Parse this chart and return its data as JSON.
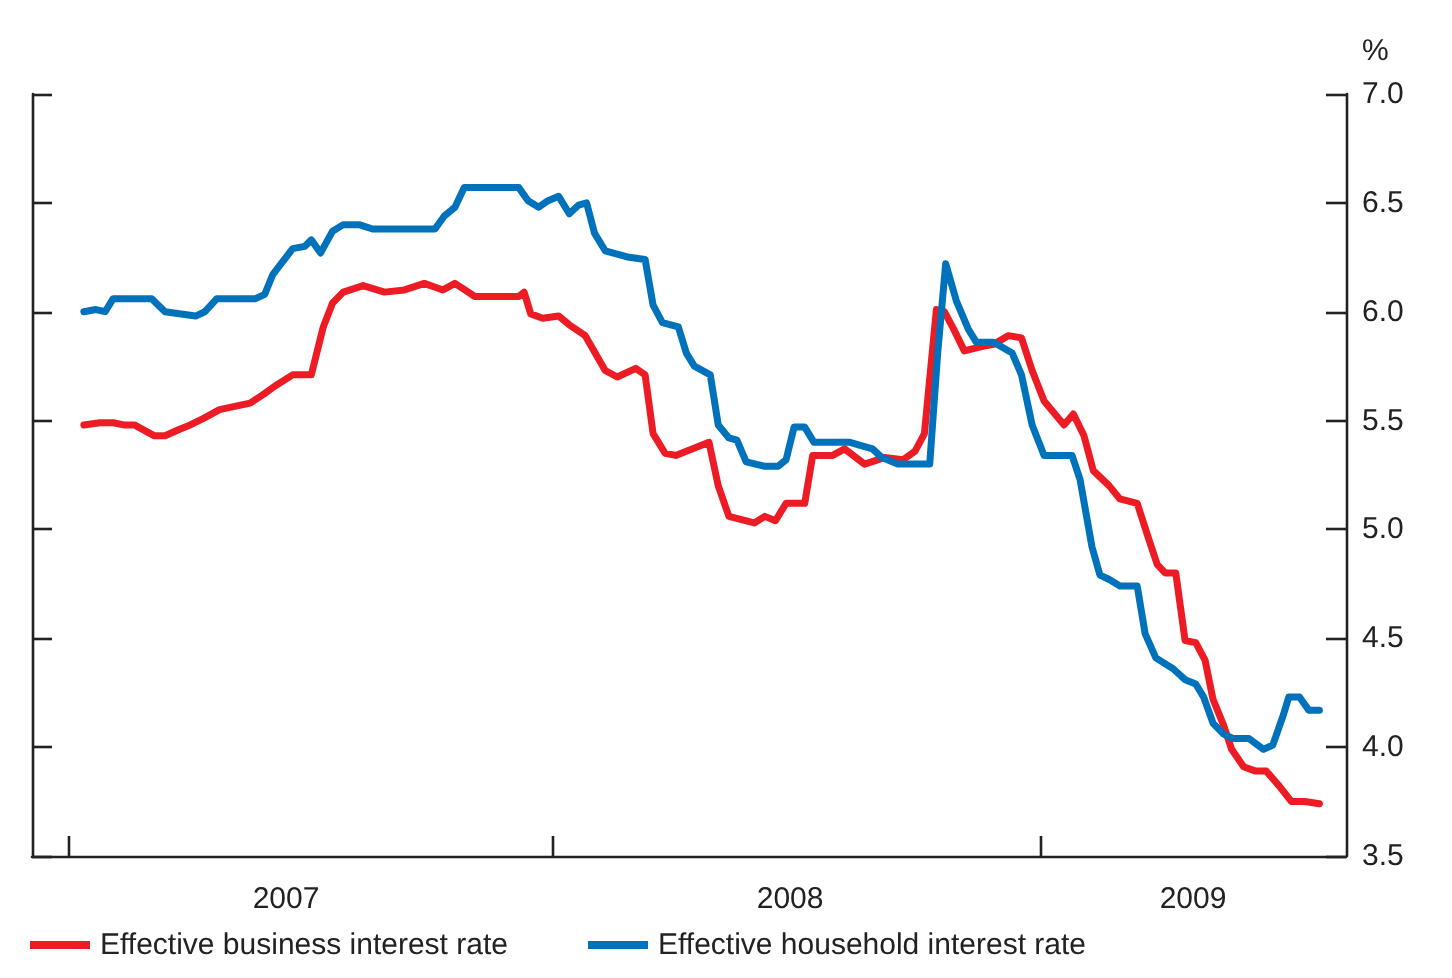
{
  "chart_data": {
    "type": "line",
    "ylabel": "%",
    "legend": "bottom",
    "grid": false,
    "marker": "none",
    "line_style": "solid",
    "tick_labels": "xy",
    "xlim": [
      "2006-12-05",
      "2009-08-19"
    ],
    "xticks": [
      {
        "value": "2007-01-01",
        "label": null
      },
      {
        "value": "2007-06-14",
        "label": "2007"
      },
      {
        "value": "2008-01-01",
        "label": null
      },
      {
        "value": "2008-06-27",
        "label": "2008"
      },
      {
        "value": "2009-01-01",
        "label": null
      },
      {
        "value": "2009-04-26",
        "label": "2009"
      }
    ],
    "ylim": [
      3.5,
      7.0
    ],
    "yticks": [
      {
        "value": 3.5,
        "label": "3.5"
      },
      {
        "value": 4,
        "label": "4.0"
      },
      {
        "value": 4.5,
        "label": "4.5"
      },
      {
        "value": 5,
        "label": "5.0"
      },
      {
        "value": 5.5,
        "label": "5.5"
      },
      {
        "value": 6,
        "label": "6.0"
      },
      {
        "value": 6.5,
        "label": "6.5"
      },
      {
        "value": 7,
        "label": "7.0"
      }
    ],
    "series": [
      {
        "name": "Effective business interest rate",
        "color": "#ed1c24",
        "x": [
          "2007-01-13",
          "2007-01-25",
          "2007-02-04",
          "2007-02-12",
          "2007-02-20",
          "2007-03-07",
          "2007-03-15",
          "2007-03-26",
          "2007-04-03",
          "2007-04-13",
          "2007-04-25",
          "2007-05-10",
          "2007-05-18",
          "2007-05-28",
          "2007-06-06",
          "2007-06-19",
          "2007-07-03",
          "2007-07-12",
          "2007-07-19",
          "2007-07-27",
          "2007-08-11",
          "2007-08-27",
          "2007-09-11",
          "2007-09-26",
          "2007-10-10",
          "2007-10-19",
          "2007-11-03",
          "2007-12-06",
          "2007-12-10",
          "2007-12-15",
          "2007-12-24",
          "2008-01-05",
          "2008-01-13",
          "2008-01-25",
          "2008-02-09",
          "2008-02-18",
          "2008-03-03",
          "2008-03-10",
          "2008-03-16",
          "2008-03-25",
          "2008-04-02",
          "2008-04-27",
          "2008-05-04",
          "2008-05-12",
          "2008-05-31",
          "2008-06-08",
          "2008-06-16",
          "2008-06-24",
          "2008-07-08",
          "2008-07-14",
          "2008-07-29",
          "2008-08-07",
          "2008-08-22",
          "2008-09-06",
          "2008-09-20",
          "2008-09-29",
          "2008-10-06",
          "2008-10-15",
          "2008-10-21",
          "2008-10-28",
          "2008-11-05",
          "2008-11-18",
          "2008-11-27",
          "2008-12-08",
          "2008-12-18",
          "2008-12-26",
          "2009-01-04",
          "2009-01-19",
          "2009-01-26",
          "2009-02-03",
          "2009-02-10",
          "2009-02-22",
          "2009-03-02",
          "2009-03-15",
          "2009-03-24",
          "2009-03-30",
          "2009-04-05",
          "2009-04-13",
          "2009-04-20",
          "2009-04-28",
          "2009-05-05",
          "2009-05-11",
          "2009-05-19",
          "2009-05-25",
          "2009-06-03",
          "2009-06-12",
          "2009-06-20",
          "2009-06-30",
          "2009-07-09",
          "2009-07-19",
          "2009-07-30"
        ],
        "values": [
          5.48,
          5.49,
          5.49,
          5.48,
          5.48,
          5.43,
          5.43,
          5.46,
          5.48,
          5.51,
          5.55,
          5.57,
          5.58,
          5.62,
          5.66,
          5.71,
          5.71,
          5.93,
          6.04,
          6.09,
          6.12,
          6.09,
          6.1,
          6.13,
          6.1,
          6.13,
          6.07,
          6.07,
          6.09,
          5.99,
          5.97,
          5.98,
          5.94,
          5.89,
          5.73,
          5.7,
          5.74,
          5.71,
          5.44,
          5.35,
          5.34,
          5.4,
          5.2,
          5.06,
          5.03,
          5.06,
          5.04,
          5.12,
          5.12,
          5.34,
          5.34,
          5.37,
          5.3,
          5.33,
          5.32,
          5.36,
          5.44,
          6.01,
          6.0,
          5.92,
          5.82,
          5.84,
          5.85,
          5.89,
          5.88,
          5.73,
          5.59,
          5.48,
          5.53,
          5.43,
          5.27,
          5.2,
          5.14,
          5.12,
          4.95,
          4.84,
          4.8,
          4.8,
          4.49,
          4.48,
          4.4,
          4.22,
          4.1,
          3.99,
          3.91,
          3.89,
          3.89,
          3.82,
          3.75,
          3.75,
          3.74
        ]
      },
      {
        "name": "Effective household interest rate",
        "color": "#0072bc",
        "x": [
          "2007-01-13",
          "2007-01-22",
          "2007-01-29",
          "2007-02-04",
          "2007-03-05",
          "2007-03-15",
          "2007-04-07",
          "2007-04-14",
          "2007-04-23",
          "2007-05-22",
          "2007-05-29",
          "2007-06-04",
          "2007-06-19",
          "2007-06-28",
          "2007-07-03",
          "2007-07-10",
          "2007-07-19",
          "2007-07-27",
          "2007-08-08",
          "2007-08-18",
          "2007-10-04",
          "2007-10-11",
          "2007-10-19",
          "2007-10-26",
          "2007-12-06",
          "2007-12-13",
          "2007-12-21",
          "2007-12-28",
          "2008-01-05",
          "2008-01-13",
          "2008-01-20",
          "2008-01-26",
          "2008-02-01",
          "2008-02-09",
          "2008-02-27",
          "2008-03-10",
          "2008-03-16",
          "2008-03-23",
          "2008-04-04",
          "2008-04-10",
          "2008-04-16",
          "2008-04-28",
          "2008-05-04",
          "2008-05-12",
          "2008-05-18",
          "2008-05-25",
          "2008-06-08",
          "2008-06-18",
          "2008-06-24",
          "2008-06-30",
          "2008-07-08",
          "2008-07-15",
          "2008-08-11",
          "2008-08-28",
          "2008-09-04",
          "2008-09-16",
          "2008-10-10",
          "2008-10-16",
          "2008-10-22",
          "2008-10-30",
          "2008-11-08",
          "2008-11-14",
          "2008-11-27",
          "2008-12-11",
          "2008-12-18",
          "2008-12-26",
          "2009-01-04",
          "2009-01-25",
          "2009-01-31",
          "2009-02-09",
          "2009-02-15",
          "2009-02-22",
          "2009-03-02",
          "2009-03-15",
          "2009-03-21",
          "2009-03-29",
          "2009-04-11",
          "2009-04-20",
          "2009-04-28",
          "2009-05-04",
          "2009-05-11",
          "2009-05-19",
          "2009-05-26",
          "2009-06-07",
          "2009-06-18",
          "2009-06-25",
          "2009-07-03",
          "2009-07-07",
          "2009-07-15",
          "2009-07-22",
          "2009-07-30"
        ],
        "values": [
          6.0,
          6.01,
          6.0,
          6.06,
          6.06,
          6.0,
          5.98,
          6.0,
          6.06,
          6.06,
          6.08,
          6.17,
          6.29,
          6.3,
          6.33,
          6.27,
          6.37,
          6.4,
          6.4,
          6.38,
          6.38,
          6.44,
          6.48,
          6.57,
          6.57,
          6.51,
          6.48,
          6.51,
          6.53,
          6.45,
          6.49,
          6.5,
          6.36,
          6.28,
          6.25,
          6.24,
          6.03,
          5.95,
          5.93,
          5.81,
          5.75,
          5.71,
          5.48,
          5.42,
          5.41,
          5.31,
          5.29,
          5.29,
          5.32,
          5.47,
          5.47,
          5.4,
          5.4,
          5.37,
          5.33,
          5.3,
          5.3,
          5.81,
          6.22,
          6.05,
          5.92,
          5.86,
          5.86,
          5.81,
          5.71,
          5.48,
          5.34,
          5.34,
          5.23,
          4.92,
          4.79,
          4.77,
          4.74,
          4.74,
          4.52,
          4.41,
          4.36,
          4.31,
          4.29,
          4.23,
          4.11,
          4.06,
          4.04,
          4.04,
          3.99,
          4.01,
          4.15,
          4.23,
          4.23,
          4.17,
          4.17
        ]
      }
    ]
  }
}
